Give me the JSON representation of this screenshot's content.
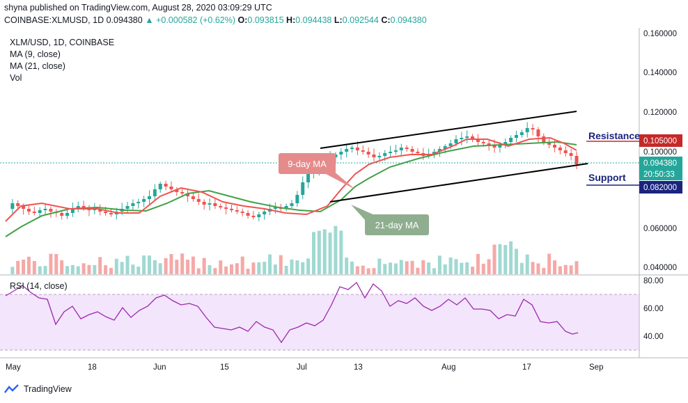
{
  "header": {
    "published": "shyna published on TradingView.com, August 28, 2020 03:09:29 UTC",
    "symbol": "COINBASE:XLMUSD, 1D",
    "price": "0.094380",
    "change_arrow": "▲",
    "change": "+0.000582 (+0.62%)",
    "o_label": "O:",
    "o_value": "0.093815",
    "h_label": "H:",
    "h_value": "0.094438",
    "l_label": "L:",
    "l_value": "0.092544",
    "c_label": "C:",
    "c_value": "0.094380"
  },
  "legend": {
    "title": "XLM/USD, 1D, COINBASE",
    "ma9": "MA (9, close)",
    "ma21": "MA (21, close)",
    "vol": "Vol",
    "rsi": "RSI (14, close)"
  },
  "annotations": {
    "ma9_callout": "9-day MA",
    "ma21_callout": "21-day MA",
    "resistance": "Resistance",
    "support": "Support"
  },
  "price_axis": {
    "ticks": [
      "0.160000",
      "0.140000",
      "0.120000",
      "0.100000",
      "0.060000",
      "0.040000"
    ],
    "resistance_level": "0.105000",
    "last_price": "0.094380",
    "countdown": "20:50:33",
    "support_level": "0.082000"
  },
  "rsi_axis": {
    "ticks": [
      "80.00",
      "60.00",
      "40.00"
    ]
  },
  "time_axis": {
    "ticks": [
      "May",
      "18",
      "Jun",
      "15",
      "Jul",
      "13",
      "Aug",
      "17",
      "Sep"
    ]
  },
  "footer": {
    "brand": "TradingView"
  },
  "colors": {
    "up": "#26a69a",
    "down": "#ef5350",
    "ma9": "#ef5350",
    "ma21": "#43a047",
    "rsi": "#9c27b0",
    "resistance": "#1a237e",
    "support": "#1a237e",
    "ma9_callout_bg": "#e58b8b",
    "ma21_callout_bg": "#8fae8f"
  },
  "chart_data": {
    "type": "candlestick",
    "y_range": [
      0.036,
      0.164
    ],
    "rsi_range": [
      25,
      85
    ],
    "resistance": 0.105,
    "support": 0.082,
    "last": 0.09438
  }
}
